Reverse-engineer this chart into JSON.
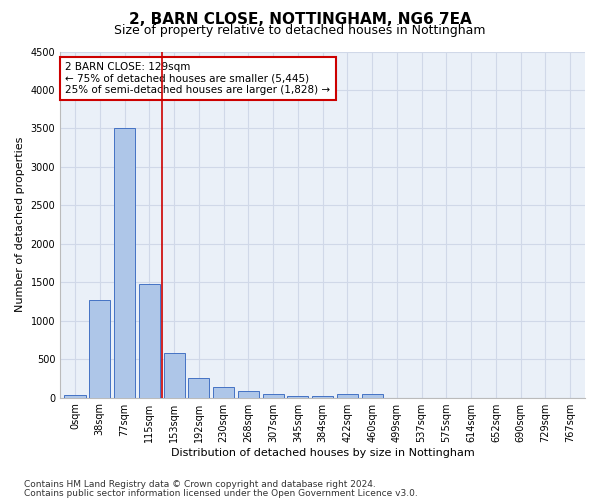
{
  "title1": "2, BARN CLOSE, NOTTINGHAM, NG6 7EA",
  "title2": "Size of property relative to detached houses in Nottingham",
  "xlabel": "Distribution of detached houses by size in Nottingham",
  "ylabel": "Number of detached properties",
  "bar_labels": [
    "0sqm",
    "38sqm",
    "77sqm",
    "115sqm",
    "153sqm",
    "192sqm",
    "230sqm",
    "268sqm",
    "307sqm",
    "345sqm",
    "384sqm",
    "422sqm",
    "460sqm",
    "499sqm",
    "537sqm",
    "575sqm",
    "614sqm",
    "652sqm",
    "690sqm",
    "729sqm",
    "767sqm"
  ],
  "bar_values": [
    30,
    1270,
    3500,
    1480,
    580,
    250,
    140,
    90,
    45,
    25,
    15,
    50,
    50,
    0,
    0,
    0,
    0,
    0,
    0,
    0,
    0
  ],
  "bar_color": "#aec6e8",
  "bar_edge_color": "#4472c4",
  "annotation_line1": "2 BARN CLOSE: 129sqm",
  "annotation_line2": "← 75% of detached houses are smaller (5,445)",
  "annotation_line3": "25% of semi-detached houses are larger (1,828) →",
  "annotation_box_color": "#ffffff",
  "annotation_box_edge_color": "#cc0000",
  "vline_color": "#cc0000",
  "vline_index": 3,
  "ylim": [
    0,
    4500
  ],
  "yticks": [
    0,
    500,
    1000,
    1500,
    2000,
    2500,
    3000,
    3500,
    4000,
    4500
  ],
  "grid_color": "#d0d8e8",
  "bg_color": "#eaf0f8",
  "footer_line1": "Contains HM Land Registry data © Crown copyright and database right 2024.",
  "footer_line2": "Contains public sector information licensed under the Open Government Licence v3.0.",
  "title_fontsize": 11,
  "subtitle_fontsize": 9,
  "axis_label_fontsize": 8,
  "tick_fontsize": 7,
  "annotation_fontsize": 7.5,
  "footer_fontsize": 6.5
}
